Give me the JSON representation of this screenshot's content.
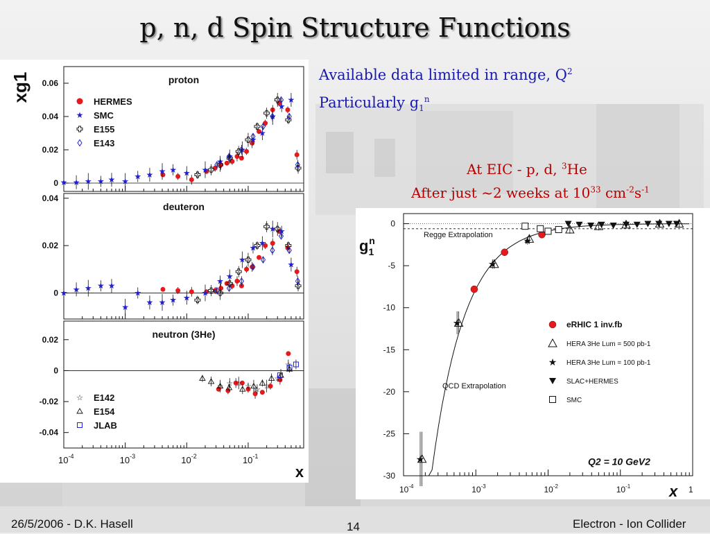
{
  "slide": {
    "title": "p, n, d Spin Structure Functions",
    "note_line1": "Available data limited in range, Q",
    "note_line1_sup": "2",
    "note_line2": "Particularly g",
    "note_line2_sub": "1",
    "note_line2_sup": "n",
    "eic_line1": "At EIC - p, d, ",
    "eic_line1_sup": "3",
    "eic_line1_end": "He",
    "eic_line2": "After just ~2 weeks at 10",
    "eic_line2_sup1": "33",
    "eic_line2_mid": " cm",
    "eic_line2_sup2": "-2",
    "eic_line2_mid2": "s",
    "eic_line2_sup3": "-1",
    "footer_left": "26/5/2006 - D.K. Hasell",
    "footer_center": "14",
    "footer_right": "Electron - Ion Collider",
    "colors": {
      "title": "#111111",
      "note": "#1a1aa8",
      "eic": "#b80000",
      "red": "#e41a1c",
      "blue": "#2020d0"
    }
  },
  "chart_data": [
    {
      "type": "scatter",
      "xscale": "log",
      "xlim": [
        0.0001,
        0.8
      ],
      "xlabel": "x",
      "ylabel": "xg1",
      "xticks": [
        "10-4",
        "10-3",
        "10-2",
        "10-1"
      ],
      "panels": [
        {
          "name": "proton",
          "ylim": [
            -0.005,
            0.07
          ],
          "yticks": [
            0,
            0.02,
            0.04,
            0.06
          ],
          "legend": [
            "HERMES",
            "SMC",
            "E155",
            "E143"
          ],
          "series": [
            {
              "name": "HERMES",
              "x": [
                0.0041,
                0.0072,
                0.012,
                0.021,
                0.029,
                0.036,
                0.045,
                0.055,
                0.066,
                0.078,
                0.094,
                0.116,
                0.15,
                0.19,
                0.25,
                0.32,
                0.44,
                0.62
              ],
              "y": [
                0.005,
                0.004,
                0.002,
                0.007,
                0.009,
                0.011,
                0.012,
                0.013,
                0.016,
                0.015,
                0.019,
                0.024,
                0.031,
                0.036,
                0.044,
                0.048,
                0.044,
                0.017
              ]
            },
            {
              "name": "SMC",
              "x": [
                0.0001,
                0.00016,
                0.00025,
                0.0004,
                0.0006,
                0.001,
                0.0016,
                0.0025,
                0.004,
                0.006,
                0.01,
                0.02,
                0.035,
                0.05,
                0.08,
                0.12,
                0.17,
                0.25,
                0.35,
                0.5
              ],
              "y": [
                0.0005,
                0.0005,
                0.001,
                0.001,
                0.002,
                0.001,
                0.004,
                0.005,
                0.007,
                0.008,
                0.006,
                0.008,
                0.013,
                0.016,
                0.02,
                0.026,
                0.03,
                0.04,
                0.046,
                0.05
              ]
            },
            {
              "name": "E155",
              "x": [
                0.015,
                0.025,
                0.035,
                0.05,
                0.07,
                0.1,
                0.14,
                0.2,
                0.3,
                0.45,
                0.65
              ],
              "y": [
                0.005,
                0.008,
                0.011,
                0.015,
                0.019,
                0.026,
                0.034,
                0.042,
                0.05,
                0.038,
                0.009
              ]
            },
            {
              "name": "E143",
              "x": [
                0.031,
                0.049,
                0.078,
                0.12,
                0.175,
                0.248,
                0.344,
                0.466,
                0.64
              ],
              "y": [
                0.011,
                0.016,
                0.02,
                0.028,
                0.034,
                0.04,
                0.05,
                0.04,
                0.011
              ]
            }
          ]
        },
        {
          "name": "deuteron",
          "ylim": [
            -0.011,
            0.042
          ],
          "yticks": [
            0,
            0.02,
            0.04
          ],
          "series": [
            {
              "name": "HERMES",
              "x": [
                0.0041,
                0.0072,
                0.012,
                0.021,
                0.029,
                0.036,
                0.045,
                0.055,
                0.066,
                0.078,
                0.094,
                0.116,
                0.15,
                0.19,
                0.25,
                0.32,
                0.44,
                0.62
              ],
              "y": [
                0.0015,
                0.001,
                0.0005,
                0.0005,
                0.001,
                0.002,
                0.004,
                0.003,
                0.005,
                0.003,
                0.01,
                0.011,
                0.015,
                0.02,
                0.021,
                0.026,
                0.019,
                0.009
              ]
            },
            {
              "name": "SMC",
              "x": [
                0.0001,
                0.00016,
                0.00025,
                0.0004,
                0.0006,
                0.001,
                0.0016,
                0.0025,
                0.004,
                0.006,
                0.01,
                0.02,
                0.035,
                0.05,
                0.08,
                0.12,
                0.17,
                0.25,
                0.35,
                0.5
              ],
              "y": [
                0.0,
                0.0015,
                0.002,
                0.003,
                0.003,
                -0.006,
                0.0,
                -0.004,
                -0.004,
                -0.003,
                -0.002,
                0.0,
                0.005,
                0.007,
                0.014,
                0.019,
                0.021,
                0.027,
                0.026,
                0.012
              ]
            },
            {
              "name": "E155",
              "x": [
                0.015,
                0.025,
                0.035,
                0.05,
                0.07,
                0.1,
                0.14,
                0.2,
                0.3,
                0.45,
                0.65
              ],
              "y": [
                -0.003,
                0.001,
                0.0,
                0.004,
                0.009,
                0.014,
                0.02,
                0.028,
                0.027,
                0.02,
                0.003
              ]
            },
            {
              "name": "E143",
              "x": [
                0.031,
                0.049,
                0.078,
                0.12,
                0.175,
                0.248,
                0.344,
                0.466,
                0.64
              ],
              "y": [
                0.001,
                0.002,
                0.005,
                0.011,
                0.014,
                0.018,
                0.024,
                0.018,
                0.005
              ]
            }
          ]
        },
        {
          "name": "neutron (3He)",
          "ylim": [
            -0.05,
            0.032
          ],
          "yticks": [
            0.02,
            0,
            -0.02,
            -0.04
          ],
          "legend": [
            "E142",
            "E154",
            "JLAB"
          ],
          "series": [
            {
              "name": "HERMES",
              "x": [
                0.033,
                0.047,
                0.063,
                0.08,
                0.1,
                0.13,
                0.17,
                0.23,
                0.33,
                0.45
              ],
              "y": [
                -0.012,
                -0.013,
                -0.008,
                -0.008,
                -0.012,
                -0.015,
                -0.014,
                -0.01,
                -0.006,
                0.011
              ]
            },
            {
              "name": "E142",
              "x": [
                0.035,
                0.05,
                0.07,
                0.1,
                0.14,
                0.2,
                0.3,
                0.45
              ],
              "y": [
                -0.01,
                -0.008,
                -0.008,
                -0.01,
                -0.012,
                -0.01,
                -0.005,
                0.004
              ]
            },
            {
              "name": "E154",
              "x": [
                0.018,
                0.025,
                0.035,
                0.049,
                0.081,
                0.123,
                0.17,
                0.24,
                0.34,
                0.47
              ],
              "y": [
                -0.005,
                -0.007,
                -0.01,
                -0.011,
                -0.012,
                -0.01,
                -0.008,
                -0.005,
                -0.003,
                0.001
              ]
            },
            {
              "name": "JLAB",
              "x": [
                0.33,
                0.47,
                0.6
              ],
              "y": [
                -0.003,
                0.002,
                0.004
              ]
            }
          ]
        }
      ]
    },
    {
      "type": "scatter",
      "xscale": "log",
      "xlim": [
        0.0001,
        1
      ],
      "ylim": [
        -30,
        1.2
      ],
      "ylabel": "g1n",
      "xlabel": "x",
      "xticks": [
        "10-4",
        "10-3",
        "10-2",
        "10-1",
        "1"
      ],
      "yticks": [
        0,
        -5,
        -10,
        -15,
        -20,
        -25,
        -30
      ],
      "annotations": [
        "Regge Extrapolation",
        "QCD Extrapolation",
        "Q2 = 10 GeV2"
      ],
      "legend": [
        "eRHIC 1 inv.fb",
        "HERA 3He Lum = 500 pb-1",
        "HERA 3He Lum = 100 pb-1",
        "SLAC+HERMES",
        "SMC"
      ],
      "series": [
        {
          "name": "eRHIC 1 inv.fb",
          "x": [
            0.00095,
            0.0025,
            0.0082
          ],
          "y": [
            -7.8,
            -3.4,
            -1.3
          ]
        },
        {
          "name": "HERA 3He Lum = 500 pb-1",
          "x": [
            0.00018,
            0.00058,
            0.0018,
            0.0055,
            0.02,
            0.05,
            0.12,
            0.35,
            0.65
          ],
          "y": [
            -28,
            -11.8,
            -4.8,
            -1.8,
            -0.7,
            -0.3,
            -0.1,
            0.0,
            0.0
          ]
        },
        {
          "name": "HERA 3He Lum = 100 pb-1",
          "x": [
            0.00017,
            0.00055,
            0.0017,
            0.0052
          ],
          "y": [
            -28,
            -11.8,
            -4.8,
            -2.0
          ]
        },
        {
          "name": "SLAC+HERMES",
          "x": [
            0.019,
            0.027,
            0.039,
            0.055,
            0.08,
            0.12,
            0.17,
            0.24,
            0.34,
            0.47,
            0.6
          ],
          "y": [
            0.0,
            -0.1,
            -0.2,
            -0.1,
            -0.2,
            -0.1,
            -0.1,
            0.0,
            0.0,
            0.0,
            0.0
          ]
        },
        {
          "name": "SMC",
          "x": [
            0.0048,
            0.0078,
            0.01,
            0.014
          ],
          "y": [
            -0.3,
            -0.6,
            -0.9,
            -0.7
          ]
        }
      ]
    }
  ]
}
